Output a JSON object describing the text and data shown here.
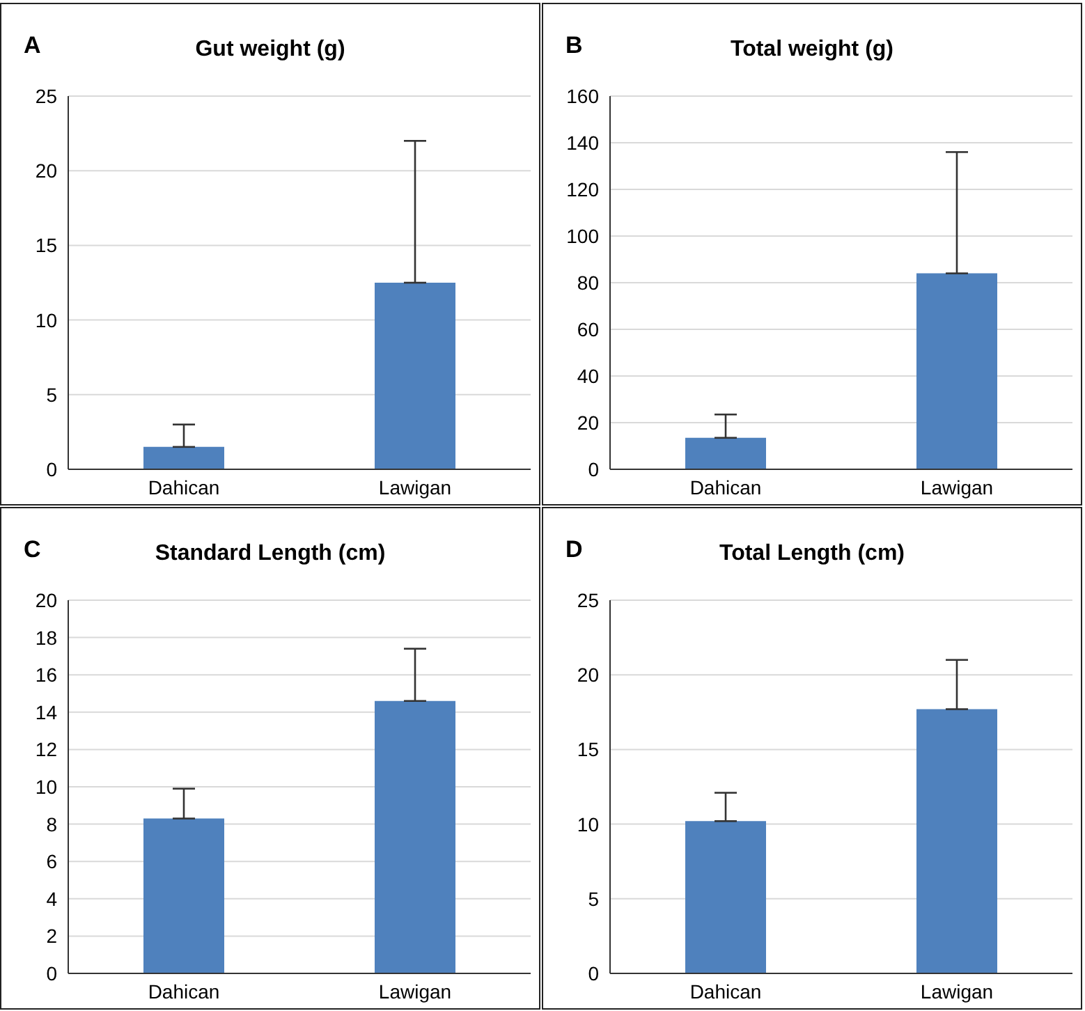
{
  "chart_data": [
    {
      "type": "bar",
      "title": "Gut weight (g)",
      "annotations": [
        "A"
      ],
      "categories": [
        "Dahican",
        "Lawigan"
      ],
      "values": [
        1.5,
        12.5
      ],
      "errors": [
        [
          1.5,
          3.0
        ],
        [
          12.5,
          22.0
        ]
      ],
      "color": "#4f81bd",
      "ylim": [
        0,
        25
      ],
      "yticks": [
        0,
        5,
        10,
        15,
        20,
        25
      ],
      "grid": "y"
    },
    {
      "type": "bar",
      "title": "Total weight (g)",
      "annotations": [
        "B"
      ],
      "categories": [
        "Dahican",
        "Lawigan"
      ],
      "values": [
        13.5,
        84
      ],
      "errors": [
        [
          13.5,
          23.5
        ],
        [
          84,
          136
        ]
      ],
      "color": "#4f81bd",
      "ylim": [
        0,
        160
      ],
      "yticks": [
        0,
        20,
        40,
        60,
        80,
        100,
        120,
        140,
        160
      ],
      "grid": "y"
    },
    {
      "type": "bar",
      "title": "Standard Length (cm)",
      "annotations": [
        "C"
      ],
      "categories": [
        "Dahican",
        "Lawigan"
      ],
      "values": [
        8.3,
        14.6
      ],
      "errors": [
        [
          8.3,
          9.9
        ],
        [
          14.6,
          17.4
        ]
      ],
      "color": "#4f81bd",
      "ylim": [
        0,
        20
      ],
      "yticks": [
        0,
        2,
        4,
        6,
        8,
        10,
        12,
        14,
        16,
        18,
        20
      ],
      "grid": "y"
    },
    {
      "type": "bar",
      "title": "Total Length (cm)",
      "annotations": [
        "D"
      ],
      "categories": [
        "Dahican",
        "Lawigan"
      ],
      "values": [
        10.2,
        17.7
      ],
      "errors": [
        [
          10.2,
          12.1
        ],
        [
          17.7,
          21.0
        ]
      ],
      "color": "#4f81bd",
      "ylim": [
        0,
        25
      ],
      "yticks": [
        0,
        5,
        10,
        15,
        20,
        25
      ],
      "grid": "y"
    }
  ]
}
